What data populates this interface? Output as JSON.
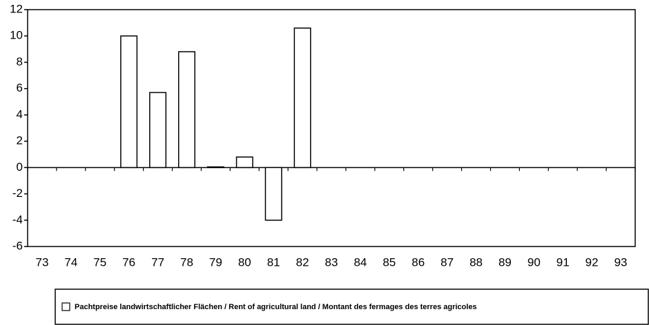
{
  "chart_data": {
    "type": "bar",
    "categories": [
      "73",
      "74",
      "75",
      "76",
      "77",
      "78",
      "79",
      "80",
      "81",
      "82",
      "83",
      "84",
      "85",
      "86",
      "87",
      "88",
      "89",
      "90",
      "91",
      "92",
      "93"
    ],
    "series": [
      {
        "name": "Pachtpreise landwirtschaftlicher Flächen / Rent of agricultural land / Montant des fermages des terres agricoles",
        "color": "#ffffff",
        "values": [
          null,
          null,
          null,
          10.0,
          5.7,
          8.8,
          0.05,
          0.8,
          -4.0,
          10.6,
          null,
          null,
          null,
          null,
          null,
          null,
          null,
          null,
          null,
          null,
          null
        ]
      }
    ],
    "ylim": [
      -6,
      12
    ],
    "yticks": [
      -6,
      -4,
      -2,
      0,
      2,
      4,
      6,
      8,
      10,
      12
    ],
    "grid": false,
    "legend": "bottom"
  }
}
